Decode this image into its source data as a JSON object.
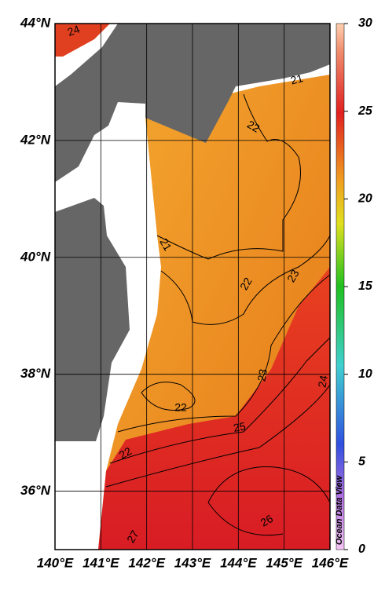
{
  "map": {
    "lat_ticks": [
      {
        "value": 44,
        "label": "44°N"
      },
      {
        "value": 42,
        "label": "42°N"
      },
      {
        "value": 40,
        "label": "40°N"
      },
      {
        "value": 38,
        "label": "38°N"
      },
      {
        "value": 36,
        "label": "36°N"
      }
    ],
    "lon_ticks": [
      {
        "value": 140,
        "label": "140°E"
      },
      {
        "value": 141,
        "label": "141°E"
      },
      {
        "value": 142,
        "label": "142°E"
      },
      {
        "value": 143,
        "label": "143°E"
      },
      {
        "value": 144,
        "label": "144°E"
      },
      {
        "value": 145,
        "label": "145°E"
      },
      {
        "value": 146,
        "label": "146°E"
      }
    ],
    "colorbar": {
      "ticks": [
        0,
        5,
        10,
        15,
        20,
        25,
        30
      ]
    },
    "contour_labels": [
      24,
      21,
      22,
      21,
      22,
      23,
      23,
      22,
      25,
      22,
      24,
      26,
      27
    ],
    "credit": "Ocean Data View"
  }
}
